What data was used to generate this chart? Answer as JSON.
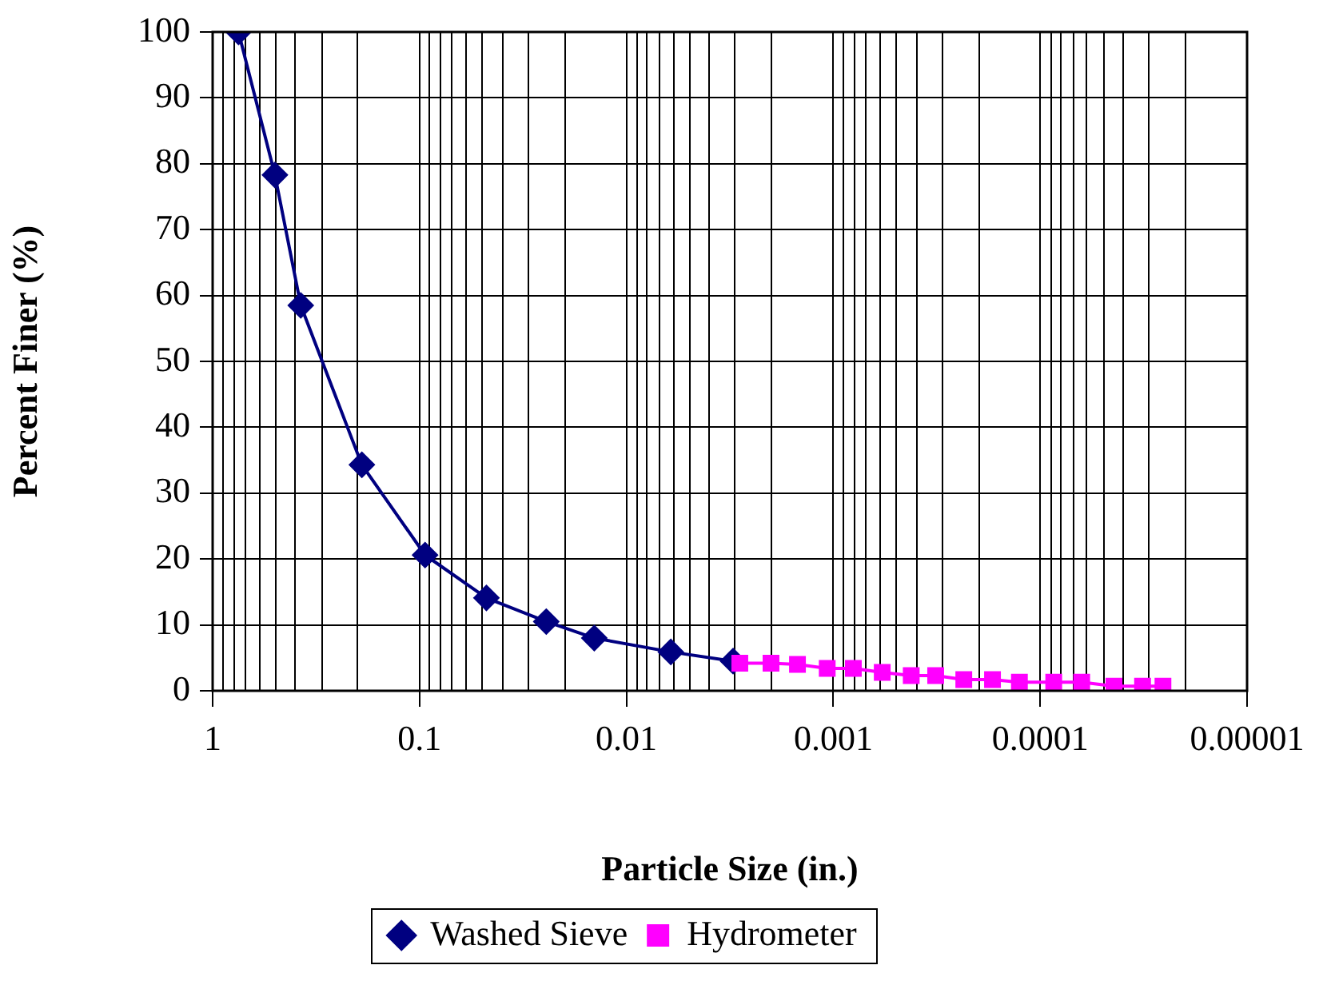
{
  "chart_data": {
    "type": "line",
    "xlabel": "Particle Size (in.)",
    "ylabel": "Percent Finer (%)",
    "log": "x",
    "xlim": [
      1,
      1e-05
    ],
    "xticks": [
      1,
      0.1,
      0.01,
      0.001,
      0.0001,
      {
        "value": 1e-05,
        "label": "0.00001"
      }
    ],
    "ylim": [
      0,
      100
    ],
    "yticks": [
      0,
      10,
      20,
      30,
      40,
      50,
      60,
      70,
      80,
      90,
      100
    ],
    "grid": true,
    "legend": "bottom",
    "line_style": "solid",
    "series": [
      {
        "name": "Washed Sieve",
        "color": "#000080",
        "marker": "diamond",
        "x": [
          0.75,
          0.5,
          0.375,
          0.19,
          0.094,
          0.0475,
          0.0244,
          0.0143,
          0.0061,
          0.00305
        ],
        "values": [
          100,
          78.3,
          58.5,
          34.3,
          20.6,
          14.1,
          10.5,
          8.0,
          5.9,
          4.5
        ]
      },
      {
        "name": "Hydrometer",
        "color": "#ff00ff",
        "marker": "square",
        "x": [
          0.00283,
          0.002,
          0.00149,
          0.00107,
          0.0008,
          0.00058,
          0.00042,
          0.00032,
          0.000234,
          0.00017,
          0.000126,
          8.6e-05,
          6.3e-05,
          4.4e-05,
          3.2e-05,
          2.55e-05
        ],
        "values": [
          4.2,
          4.2,
          4.0,
          3.4,
          3.4,
          2.8,
          2.3,
          2.3,
          1.7,
          1.7,
          1.3,
          1.3,
          1.3,
          0.7,
          0.7,
          0.7
        ]
      }
    ]
  }
}
